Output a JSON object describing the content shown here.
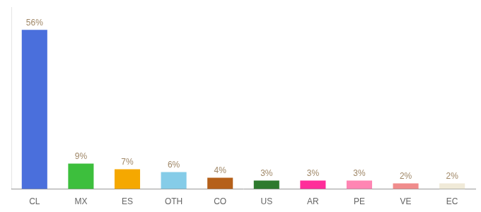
{
  "chart_data": {
    "type": "bar",
    "categories": [
      "CL",
      "MX",
      "ES",
      "OTH",
      "CO",
      "US",
      "AR",
      "PE",
      "VE",
      "EC"
    ],
    "values": [
      56,
      9,
      7,
      6,
      4,
      3,
      3,
      3,
      2,
      2
    ],
    "value_labels": [
      "56%",
      "9%",
      "7%",
      "6%",
      "4%",
      "3%",
      "3%",
      "3%",
      "2%",
      "2%"
    ],
    "colors": [
      "#4a6fdc",
      "#3dbf3d",
      "#f5a800",
      "#85cce8",
      "#b5601a",
      "#2d7a2d",
      "#ff2d9a",
      "#ff85b3",
      "#f08c8c",
      "#f0ead8"
    ],
    "ylim": [
      0,
      64
    ],
    "grid": false,
    "tick_labels": "x"
  }
}
